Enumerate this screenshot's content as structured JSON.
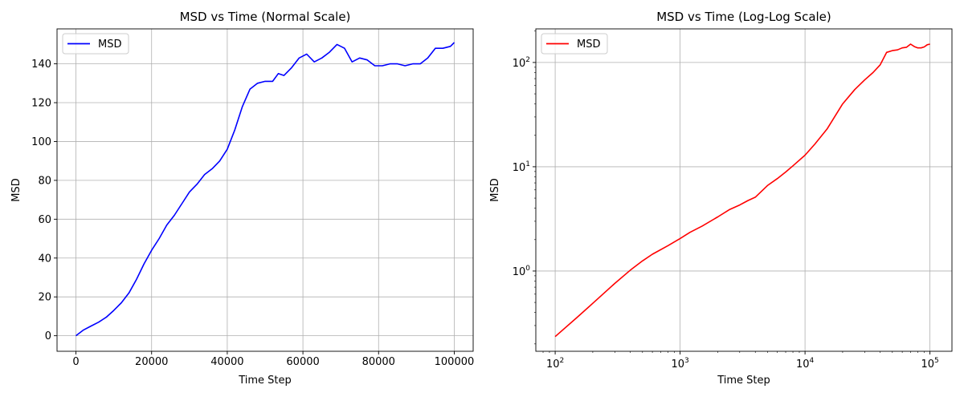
{
  "chart_data": [
    {
      "type": "line",
      "title": "MSD vs Time (Normal Scale)",
      "xlabel": "Time Step",
      "ylabel": "MSD",
      "xlim": [
        -5000,
        105000
      ],
      "ylim": [
        -8,
        158
      ],
      "x_ticks": [
        0,
        20000,
        40000,
        60000,
        80000,
        100000
      ],
      "x_tick_labels": [
        "0",
        "20000",
        "40000",
        "60000",
        "80000",
        "100000"
      ],
      "y_ticks": [
        0,
        20,
        40,
        60,
        80,
        100,
        120,
        140
      ],
      "y_tick_labels": [
        "0",
        "20",
        "40",
        "60",
        "80",
        "100",
        "120",
        "140"
      ],
      "grid": true,
      "legend_position": "top-left",
      "series": [
        {
          "name": "MSD",
          "color": "#0000ff",
          "x": [
            0,
            2000,
            4000,
            6000,
            8000,
            10000,
            12000,
            14000,
            16000,
            18000,
            20000,
            22000,
            24000,
            26000,
            28000,
            30000,
            32000,
            34000,
            36000,
            38000,
            40000,
            42000,
            44000,
            46000,
            48000,
            50000,
            52000,
            53500,
            55000,
            57000,
            59000,
            61000,
            63000,
            65000,
            67000,
            69000,
            71000,
            73000,
            75000,
            77000,
            79000,
            81000,
            83000,
            85000,
            87000,
            89000,
            91000,
            93000,
            95000,
            97000,
            99000,
            100000
          ],
          "y": [
            0,
            3,
            5,
            7,
            9.5,
            13,
            17,
            22,
            29,
            37,
            44,
            50,
            57,
            62,
            68,
            74,
            78,
            83,
            86,
            90,
            96,
            106,
            118,
            127,
            130,
            131,
            131,
            135,
            134,
            138,
            143,
            145,
            141,
            143,
            146,
            150,
            148,
            141,
            143,
            142,
            139,
            139,
            140,
            140,
            139,
            140,
            140,
            143,
            148,
            148,
            149,
            151
          ]
        }
      ]
    },
    {
      "type": "line",
      "title": "MSD vs Time (Log-Log Scale)",
      "xlabel": "Time Step",
      "ylabel": "MSD",
      "x_scale": "log",
      "y_scale": "log",
      "xlim": [
        70,
        150000
      ],
      "ylim": [
        0.17,
        210
      ],
      "x_ticks": [
        100,
        1000,
        10000,
        100000
      ],
      "x_tick_labels": [
        {
          "base": "10",
          "exp": "2"
        },
        {
          "base": "10",
          "exp": "3"
        },
        {
          "base": "10",
          "exp": "4"
        },
        {
          "base": "10",
          "exp": "5"
        }
      ],
      "y_ticks": [
        1,
        10,
        100
      ],
      "y_tick_labels": [
        {
          "base": "10",
          "exp": "0"
        },
        {
          "base": "10",
          "exp": "1"
        },
        {
          "base": "10",
          "exp": "2"
        }
      ],
      "grid": true,
      "legend_position": "top-left",
      "series": [
        {
          "name": "MSD",
          "color": "#ff0000",
          "x": [
            100,
            150,
            200,
            300,
            400,
            500,
            600,
            800,
            1000,
            1200,
            1500,
            2000,
            2500,
            3000,
            3500,
            4000,
            5000,
            6000,
            7000,
            8000,
            10000,
            12000,
            15000,
            20000,
            25000,
            30000,
            35000,
            40000,
            45000,
            50000,
            55000,
            60000,
            65000,
            70000,
            75000,
            80000,
            85000,
            90000,
            95000,
            100000
          ],
          "y": [
            0.235,
            0.36,
            0.49,
            0.76,
            1.02,
            1.25,
            1.45,
            1.75,
            2.05,
            2.35,
            2.7,
            3.3,
            3.9,
            4.3,
            4.75,
            5.1,
            6.6,
            7.7,
            8.9,
            10.2,
            12.9,
            16.5,
            23,
            40,
            55,
            68,
            80,
            95,
            125,
            130,
            132,
            138,
            140,
            150,
            142,
            138,
            138,
            141,
            148,
            150
          ]
        }
      ]
    }
  ]
}
